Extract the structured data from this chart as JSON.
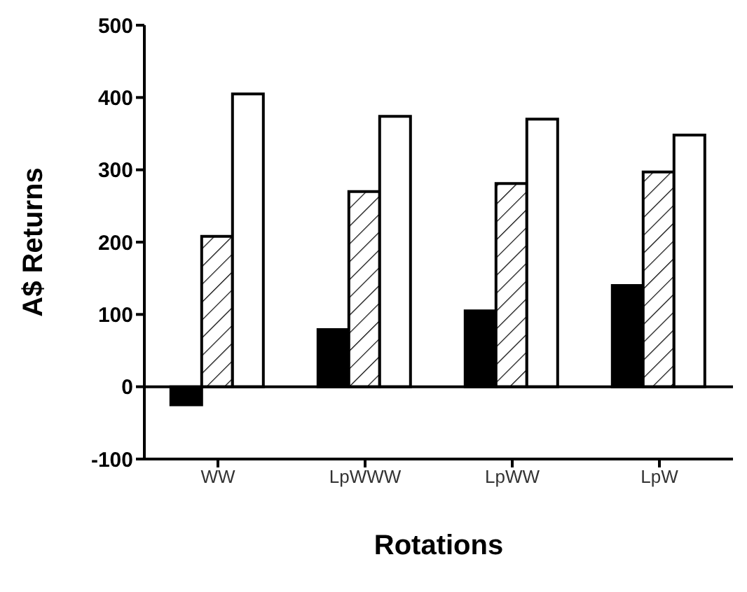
{
  "chart_data": {
    "type": "bar",
    "xlabel": "Rotations",
    "ylabel": "A$ Returns",
    "categories": [
      "WW",
      "LpWWW",
      "LpWW",
      "LpW"
    ],
    "series": [
      {
        "color": "#000000",
        "values": [
          -25,
          79,
          105,
          140
        ]
      },
      {
        "color": "#000000",
        "values": [
          208,
          270,
          281,
          297
        ]
      },
      {
        "color": "#ffffff",
        "values": [
          405,
          374,
          370,
          348
        ]
      }
    ],
    "ylim": [
      -100,
      500
    ],
    "yticks": [
      -100,
      0,
      100,
      200,
      300,
      400,
      500
    ],
    "ref_lines": [
      {
        "axis": "y",
        "value": 0,
        "color": "#000000"
      }
    ],
    "grid": false,
    "legend": false
  }
}
